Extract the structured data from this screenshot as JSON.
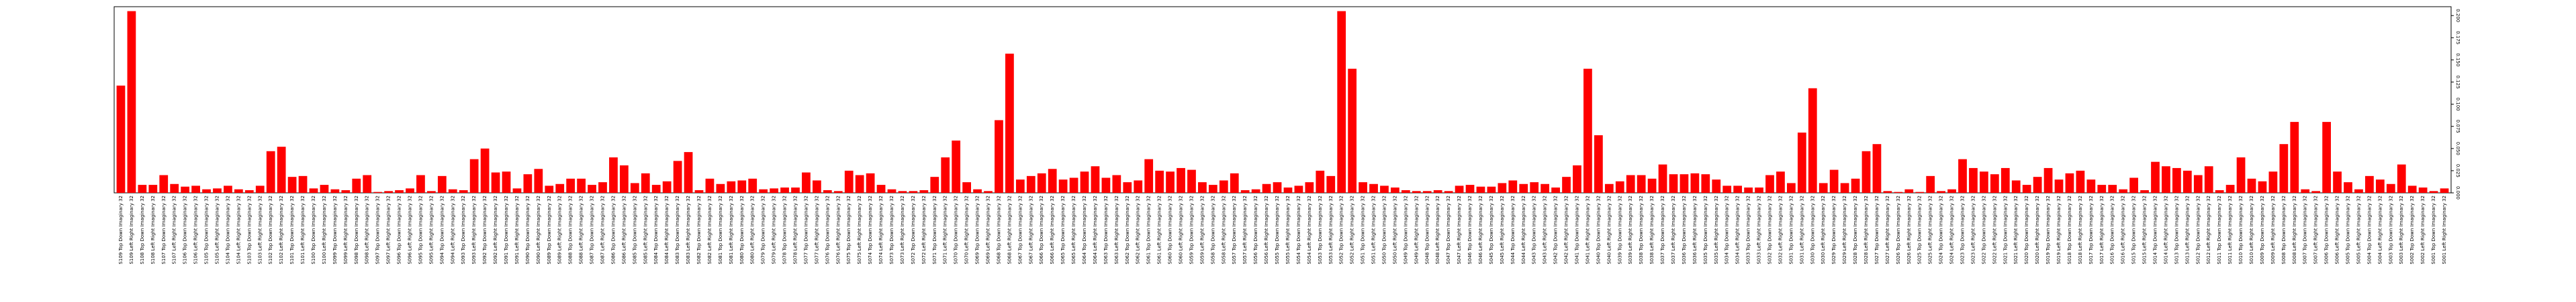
{
  "chart_data": {
    "type": "bar",
    "color": "#ff0000",
    "categories": [
      "S109 Top Down Imaginary 32",
      "S109 Left Right Imaginary 32",
      "S108 Top Down Imaginary 32",
      "S108 Left Right Imaginary 32",
      "S107 Top Down Imaginary 32",
      "S107 Left Right Imaginary 32",
      "S106 Top Down Imaginary 32",
      "S106 Left Right Imaginary 32",
      "S105 Top Down Imaginary 32",
      "S105 Left Right Imaginary 32",
      "S104 Top Down Imaginary 32",
      "S104 Left Right Imaginary 32",
      "S103 Top Down Imaginary 32",
      "S103 Left Right Imaginary 32",
      "S102 Top Down Imaginary 32",
      "S102 Left Right Imaginary 32",
      "S101 Top Down Imaginary 32",
      "S101 Left Right Imaginary 32",
      "S100 Top Down Imaginary 32",
      "S100 Left Right Imaginary 32",
      "S099 Top Down Imaginary 32",
      "S099 Left Right Imaginary 32",
      "S098 Top Down Imaginary 32",
      "S098 Left Right Imaginary 32",
      "S097 Top Down Imaginary 32",
      "S097 Left Right Imaginary 32",
      "S096 Top Down Imaginary 32",
      "S096 Left Right Imaginary 32",
      "S095 Top Down Imaginary 32",
      "S095 Left Right Imaginary 32",
      "S094 Top Down Imaginary 32",
      "S094 Left Right Imaginary 32",
      "S093 Top Down Imaginary 32",
      "S093 Left Right Imaginary 32",
      "S092 Top Down Imaginary 32",
      "S092 Left Right Imaginary 32",
      "S091 Top Down Imaginary 32",
      "S091 Left Right Imaginary 32",
      "S090 Top Down Imaginary 32",
      "S090 Left Right Imaginary 32",
      "S089 Top Down Imaginary 32",
      "S089 Left Right Imaginary 32",
      "S088 Top Down Imaginary 32",
      "S088 Left Right Imaginary 32",
      "S087 Top Down Imaginary 32",
      "S087 Left Right Imaginary 32",
      "S086 Top Down Imaginary 32",
      "S086 Left Right Imaginary 32",
      "S085 Top Down Imaginary 32",
      "S085 Left Right Imaginary 32",
      "S084 Top Down Imaginary 32",
      "S084 Left Right Imaginary 32",
      "S083 Top Down Imaginary 32",
      "S083 Left Right Imaginary 32",
      "S082 Top Down Imaginary 32",
      "S082 Left Right Imaginary 32",
      "S081 Top Down Imaginary 32",
      "S081 Left Right Imaginary 32",
      "S080 Top Down Imaginary 32",
      "S080 Left Right Imaginary 32",
      "S079 Top Down Imaginary 32",
      "S079 Left Right Imaginary 32",
      "S078 Top Down Imaginary 32",
      "S078 Left Right Imaginary 32",
      "S077 Top Down Imaginary 32",
      "S077 Left Right Imaginary 32",
      "S076 Top Down Imaginary 32",
      "S076 Left Right Imaginary 32",
      "S075 Top Down Imaginary 32",
      "S075 Left Right Imaginary 32",
      "S074 Top Down Imaginary 32",
      "S074 Left Right Imaginary 32",
      "S073 Top Down Imaginary 32",
      "S073 Left Right Imaginary 32",
      "S072 Top Down Imaginary 32",
      "S072 Left Right Imaginary 32",
      "S071 Top Down Imaginary 32",
      "S071 Left Right Imaginary 32",
      "S070 Top Down Imaginary 32",
      "S070 Left Right Imaginary 32",
      "S069 Top Down Imaginary 32",
      "S069 Left Right Imaginary 32",
      "S068 Top Down Imaginary 32",
      "S068 Left Right Imaginary 32",
      "S067 Top Down Imaginary 32",
      "S067 Left Right Imaginary 32",
      "S066 Top Down Imaginary 32",
      "S066 Left Right Imaginary 32",
      "S065 Top Down Imaginary 32",
      "S065 Left Right Imaginary 32",
      "S064 Top Down Imaginary 32",
      "S064 Left Right Imaginary 32",
      "S063 Top Down Imaginary 32",
      "S063 Left Right Imaginary 32",
      "S062 Top Down Imaginary 32",
      "S062 Left Right Imaginary 32",
      "S061 Top Down Imaginary 32",
      "S061 Left Right Imaginary 32",
      "S060 Top Down Imaginary 32",
      "S060 Left Right Imaginary 32",
      "S059 Top Down Imaginary 32",
      "S059 Left Right Imaginary 32",
      "S058 Top Down Imaginary 32",
      "S058 Left Right Imaginary 32",
      "S057 Top Down Imaginary 32",
      "S057 Left Right Imaginary 32",
      "S056 Top Down Imaginary 32",
      "S056 Left Right Imaginary 32",
      "S055 Top Down Imaginary 32",
      "S055 Left Right Imaginary 32",
      "S054 Top Down Imaginary 32",
      "S054 Left Right Imaginary 32",
      "S053 Top Down Imaginary 32",
      "S053 Left Right Imaginary 32",
      "S052 Top Down Imaginary 32",
      "S052 Left Right Imaginary 32",
      "S051 Top Down Imaginary 32",
      "S051 Left Right Imaginary 32",
      "S050 Top Down Imaginary 32",
      "S050 Left Right Imaginary 32",
      "S049 Top Down Imaginary 32",
      "S049 Left Right Imaginary 32",
      "S048 Top Down Imaginary 32",
      "S048 Left Right Imaginary 32",
      "S047 Top Down Imaginary 32",
      "S047 Left Right Imaginary 32",
      "S046 Top Down Imaginary 32",
      "S046 Left Right Imaginary 32",
      "S045 Top Down Imaginary 32",
      "S045 Left Right Imaginary 32",
      "S044 Top Down Imaginary 32",
      "S044 Left Right Imaginary 32",
      "S043 Top Down Imaginary 32",
      "S043 Left Right Imaginary 32",
      "S042 Top Down Imaginary 32",
      "S042 Left Right Imaginary 32",
      "S041 Top Down Imaginary 32",
      "S041 Left Right Imaginary 32",
      "S040 Top Down Imaginary 32",
      "S040 Left Right Imaginary 32",
      "S039 Top Down Imaginary 32",
      "S039 Left Right Imaginary 32",
      "S038 Top Down Imaginary 32",
      "S038 Left Right Imaginary 32",
      "S037 Top Down Imaginary 32",
      "S037 Left Right Imaginary 32",
      "S036 Top Down Imaginary 32",
      "S036 Left Right Imaginary 32",
      "S035 Top Down Imaginary 32",
      "S035 Left Right Imaginary 32",
      "S034 Top Down Imaginary 32",
      "S034 Left Right Imaginary 32",
      "S033 Top Down Imaginary 32",
      "S033 Left Right Imaginary 32",
      "S032 Top Down Imaginary 32",
      "S032 Left Right Imaginary 32",
      "S031 Top Down Imaginary 32",
      "S031 Left Right Imaginary 32",
      "S030 Top Down Imaginary 32",
      "S030 Left Right Imaginary 32",
      "S029 Top Down Imaginary 32",
      "S029 Left Right Imaginary 32",
      "S028 Top Down Imaginary 32",
      "S028 Left Right Imaginary 32",
      "S027 Top Down Imaginary 32",
      "S027 Left Right Imaginary 32",
      "S026 Top Down Imaginary 32",
      "S026 Left Right Imaginary 32",
      "S025 Top Down Imaginary 32",
      "S025 Left Right Imaginary 32",
      "S024 Top Down Imaginary 32",
      "S024 Left Right Imaginary 32",
      "S023 Top Down Imaginary 32",
      "S023 Left Right Imaginary 32",
      "S022 Top Down Imaginary 32",
      "S022 Left Right Imaginary 32",
      "S021 Top Down Imaginary 32",
      "S021 Left Right Imaginary 32",
      "S020 Top Down Imaginary 32",
      "S020 Left Right Imaginary 32",
      "S019 Top Down Imaginary 32",
      "S019 Left Right Imaginary 32",
      "S018 Top Down Imaginary 32",
      "S018 Left Right Imaginary 32",
      "S017 Top Down Imaginary 32",
      "S017 Left Right Imaginary 32",
      "S016 Top Down Imaginary 32",
      "S016 Left Right Imaginary 32",
      "S015 Top Down Imaginary 32",
      "S015 Left Right Imaginary 32",
      "S014 Top Down Imaginary 32",
      "S014 Left Right Imaginary 32",
      "S013 Top Down Imaginary 32",
      "S013 Left Right Imaginary 32",
      "S012 Top Down Imaginary 32",
      "S012 Left Right Imaginary 32",
      "S011 Top Down Imaginary 32",
      "S011 Left Right Imaginary 32",
      "S010 Top Down Imaginary 32",
      "S010 Left Right Imaginary 32",
      "S009 Top Down Imaginary 32",
      "S009 Left Right Imaginary 32",
      "S008 Top Down Imaginary 32",
      "S008 Left Right Imaginary 32",
      "S007 Top Down Imaginary 32",
      "S007 Left Right Imaginary 32",
      "S006 Top Down Imaginary 32",
      "S006 Left Right Imaginary 32",
      "S005 Top Down Imaginary 32",
      "S005 Left Right Imaginary 32",
      "S004 Top Down Imaginary 32",
      "S004 Left Right Imaginary 32",
      "S003 Top Down Imaginary 32",
      "S003 Left Right Imaginary 32",
      "S002 Top Down Imaginary 32",
      "S002 Left Right Imaginary 32",
      "S001 Top Down Imaginary 32",
      "S001 Left Right Imaginary 32"
    ],
    "values": [
      0.121,
      0.205,
      0.009,
      0.009,
      0.02,
      0.01,
      0.007,
      0.008,
      0.004,
      0.005,
      0.008,
      0.004,
      0.003,
      0.008,
      0.047,
      0.052,
      0.018,
      0.019,
      0.005,
      0.009,
      0.004,
      0.003,
      0.016,
      0.02,
      0.001,
      0.002,
      0.003,
      0.005,
      0.02,
      0.002,
      0.019,
      0.004,
      0.003,
      0.038,
      0.05,
      0.023,
      0.024,
      0.005,
      0.021,
      0.027,
      0.008,
      0.01,
      0.016,
      0.016,
      0.009,
      0.012,
      0.04,
      0.031,
      0.011,
      0.022,
      0.009,
      0.013,
      0.036,
      0.046,
      0.003,
      0.016,
      0.01,
      0.013,
      0.014,
      0.016,
      0.004,
      0.005,
      0.006,
      0.006,
      0.023,
      0.014,
      0.003,
      0.002,
      0.025,
      0.02,
      0.022,
      0.009,
      0.004,
      0.002,
      0.002,
      0.003,
      0.018,
      0.04,
      0.059,
      0.012,
      0.004,
      0.002,
      0.082,
      0.157,
      0.015,
      0.019,
      0.022,
      0.027,
      0.015,
      0.017,
      0.024,
      0.03,
      0.017,
      0.02,
      0.012,
      0.014,
      0.038,
      0.025,
      0.024,
      0.028,
      0.026,
      0.012,
      0.009,
      0.014,
      0.022,
      0.003,
      0.004,
      0.01,
      0.012,
      0.006,
      0.008,
      0.012,
      0.025,
      0.019,
      0.205,
      0.14,
      0.012,
      0.01,
      0.008,
      0.006,
      0.003,
      0.002,
      0.002,
      0.003,
      0.002,
      0.008,
      0.009,
      0.007,
      0.007,
      0.011,
      0.014,
      0.01,
      0.012,
      0.01,
      0.006,
      0.018,
      0.031,
      0.14,
      0.065,
      0.01,
      0.013,
      0.02,
      0.02,
      0.016,
      0.032,
      0.021,
      0.021,
      0.022,
      0.021,
      0.015,
      0.008,
      0.008,
      0.006,
      0.006,
      0.02,
      0.024,
      0.011,
      0.068,
      0.118,
      0.011,
      0.026,
      0.011,
      0.016,
      0.047,
      0.055,
      0.002,
      0.001,
      0.004,
      0.001,
      0.019,
      0.002,
      0.004,
      0.038,
      0.028,
      0.024,
      0.021,
      0.028,
      0.014,
      0.009,
      0.018,
      0.028,
      0.015,
      0.022,
      0.025,
      0.015,
      0.009,
      0.009,
      0.004,
      0.017,
      0.003,
      0.035,
      0.03,
      0.028,
      0.025,
      0.02,
      0.03,
      0.003,
      0.009,
      0.04,
      0.016,
      0.013,
      0.024,
      0.055,
      0.08,
      0.004,
      0.002,
      0.08,
      0.024,
      0.012,
      0.004,
      0.019,
      0.015,
      0.01,
      0.032,
      0.008,
      0.006,
      0.002,
      0.005
    ],
    "ylim": [
      0,
      0.21
    ],
    "yticks": [
      {
        "value": 0,
        "label": "0.000"
      },
      {
        "value": 0.025,
        "label": "0.025"
      },
      {
        "value": 0.05,
        "label": "0.050"
      },
      {
        "value": 0.075,
        "label": "0.075"
      },
      {
        "value": 0.1,
        "label": "0.100"
      },
      {
        "value": 0.125,
        "label": "0.125"
      },
      {
        "value": 0.15,
        "label": "0.150"
      },
      {
        "value": 0.175,
        "label": "0.175"
      },
      {
        "value": 0.2,
        "label": "0.200"
      }
    ],
    "grid": false
  }
}
